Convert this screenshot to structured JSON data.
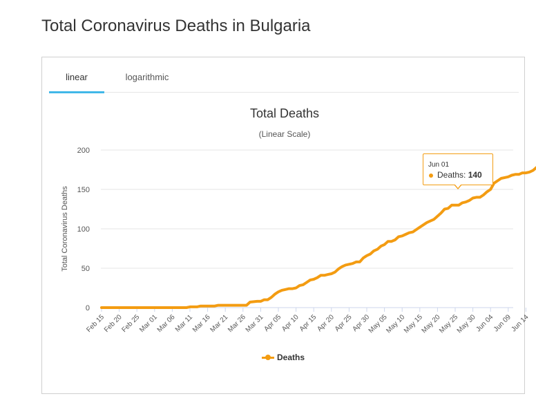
{
  "page": {
    "title": "Total Coronavirus Deaths in Bulgaria"
  },
  "tabs": [
    {
      "label": "linear",
      "active": true
    },
    {
      "label": "logarithmic",
      "active": false
    }
  ],
  "tooltip": {
    "date": "Jun 01",
    "series": "Deaths",
    "value": "140"
  },
  "colors": {
    "series": "#f39c12",
    "tab_active": "#41b8e8",
    "grid": "#e6e6e6"
  },
  "chart_data": {
    "type": "line",
    "title": "Total Deaths",
    "subtitle": "(Linear Scale)",
    "xlabel": "",
    "ylabel": "Total Coronavirus Deaths",
    "ylim": [
      0,
      200
    ],
    "yticks": [
      0,
      50,
      100,
      150,
      200
    ],
    "grid": true,
    "legend": "bottom-center",
    "start_date": "Feb 15",
    "xtick_labels": [
      "Feb 15",
      "Feb 20",
      "Feb 25",
      "Mar 01",
      "Mar 06",
      "Mar 11",
      "Mar 16",
      "Mar 21",
      "Mar 26",
      "Mar 31",
      "Apr 05",
      "Apr 10",
      "Apr 15",
      "Apr 20",
      "Apr 25",
      "Apr 30",
      "May 05",
      "May 10",
      "May 15",
      "May 20",
      "May 25",
      "May 30",
      "Jun 04",
      "Jun 09",
      "Jun 14"
    ],
    "series": [
      {
        "name": "Deaths",
        "points": [
          [
            0,
            0
          ],
          [
            24,
            0
          ],
          [
            25,
            1
          ],
          [
            27,
            1
          ],
          [
            28,
            2
          ],
          [
            32,
            2
          ],
          [
            33,
            3
          ],
          [
            41,
            3
          ],
          [
            42,
            7
          ],
          [
            44,
            8
          ],
          [
            45,
            8
          ],
          [
            46,
            10
          ],
          [
            47,
            10
          ],
          [
            48,
            13
          ],
          [
            49,
            17
          ],
          [
            50,
            20
          ],
          [
            51,
            22
          ],
          [
            52,
            23
          ],
          [
            53,
            24
          ],
          [
            54,
            24
          ],
          [
            55,
            25
          ],
          [
            56,
            28
          ],
          [
            57,
            29
          ],
          [
            58,
            32
          ],
          [
            59,
            35
          ],
          [
            60,
            36
          ],
          [
            61,
            38
          ],
          [
            62,
            41
          ],
          [
            63,
            41
          ],
          [
            64,
            42
          ],
          [
            65,
            43
          ],
          [
            66,
            45
          ],
          [
            67,
            49
          ],
          [
            68,
            52
          ],
          [
            69,
            54
          ],
          [
            70,
            55
          ],
          [
            71,
            56
          ],
          [
            72,
            58
          ],
          [
            73,
            58
          ],
          [
            74,
            63
          ],
          [
            75,
            66
          ],
          [
            76,
            68
          ],
          [
            77,
            72
          ],
          [
            78,
            74
          ],
          [
            79,
            78
          ],
          [
            80,
            80
          ],
          [
            81,
            84
          ],
          [
            82,
            84
          ],
          [
            83,
            86
          ],
          [
            84,
            90
          ],
          [
            85,
            91
          ],
          [
            86,
            93
          ],
          [
            87,
            95
          ],
          [
            88,
            96
          ],
          [
            89,
            99
          ],
          [
            90,
            102
          ],
          [
            91,
            105
          ],
          [
            92,
            108
          ],
          [
            93,
            110
          ],
          [
            94,
            112
          ],
          [
            95,
            116
          ],
          [
            96,
            120
          ],
          [
            97,
            125
          ],
          [
            98,
            126
          ],
          [
            99,
            130
          ],
          [
            100,
            130
          ],
          [
            101,
            130
          ],
          [
            102,
            133
          ],
          [
            103,
            134
          ],
          [
            104,
            136
          ],
          [
            105,
            139
          ],
          [
            106,
            140
          ],
          [
            107,
            140
          ],
          [
            108,
            143
          ],
          [
            109,
            147
          ],
          [
            110,
            150
          ],
          [
            111,
            158
          ],
          [
            112,
            161
          ],
          [
            113,
            164
          ],
          [
            114,
            165
          ],
          [
            115,
            166
          ],
          [
            116,
            168
          ],
          [
            117,
            169
          ],
          [
            118,
            169
          ],
          [
            119,
            171
          ],
          [
            120,
            171
          ],
          [
            121,
            172
          ],
          [
            122,
            174
          ],
          [
            123,
            178
          ],
          [
            124,
            182
          ],
          [
            125,
            184
          ]
        ]
      }
    ]
  }
}
